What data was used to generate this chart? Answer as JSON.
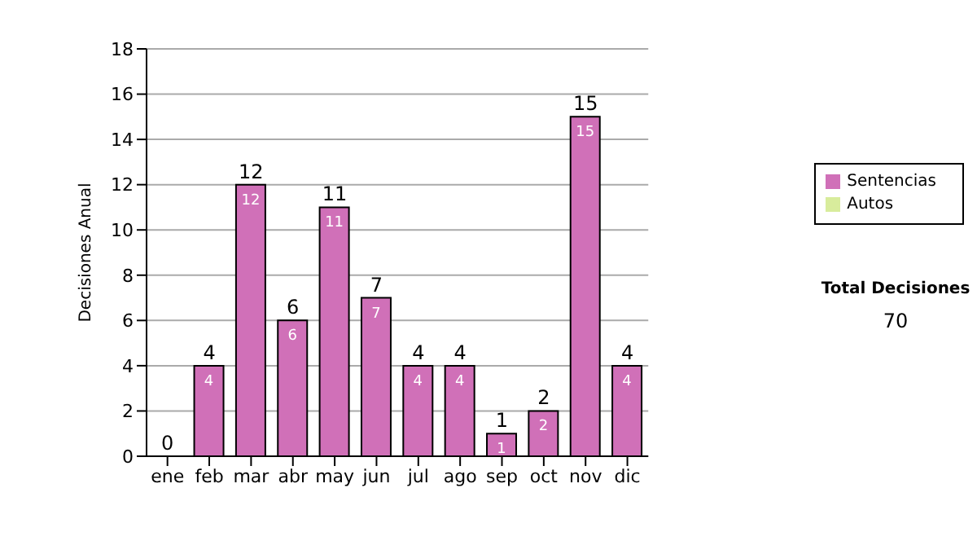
{
  "chart_data": {
    "type": "bar",
    "ylabel": "Decisiones Anual",
    "categories": [
      "ene",
      "feb",
      "mar",
      "abr",
      "may",
      "jun",
      "jul",
      "ago",
      "sep",
      "oct",
      "nov",
      "dic"
    ],
    "series": [
      {
        "name": "Sentencias",
        "color": "#d070b8",
        "values": [
          0,
          4,
          12,
          6,
          11,
          7,
          4,
          4,
          1,
          2,
          15,
          4
        ],
        "value_labels": [
          null,
          "4",
          "12",
          "6",
          "11",
          "7",
          "4",
          "4",
          "1",
          "2",
          "15",
          "4"
        ]
      },
      {
        "name": "Autos",
        "color": "#d8ec9c",
        "values": [
          null,
          null,
          null,
          null,
          null,
          null,
          null,
          null,
          null,
          null,
          null,
          null
        ]
      }
    ],
    "stacked": true,
    "totals": [
      "0",
      "4",
      "12",
      "6",
      "11",
      "7",
      "4",
      "4",
      "1",
      "2",
      "15",
      "4"
    ],
    "ylim": [
      0,
      18
    ],
    "yticks": [
      0,
      2,
      4,
      6,
      8,
      10,
      12,
      14,
      16,
      18
    ],
    "grid": "y",
    "legend": "right",
    "annotations": [
      "Total Decisiones",
      "70"
    ]
  }
}
